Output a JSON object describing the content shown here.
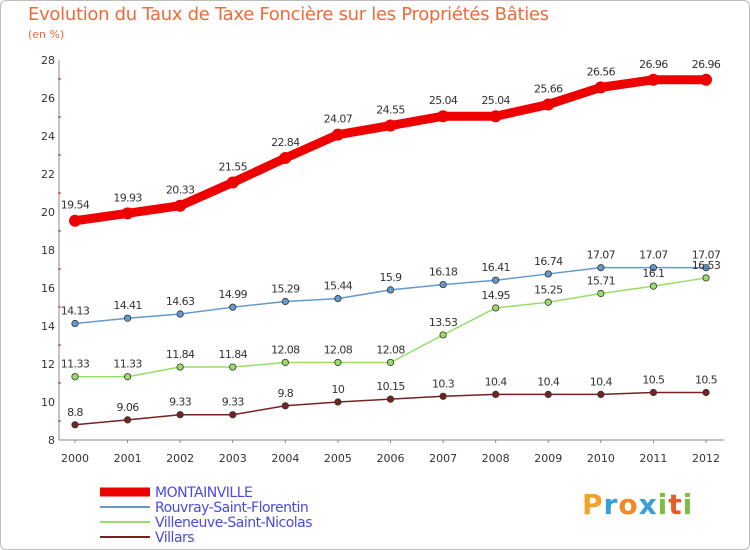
{
  "title": "Evolution du Taux de Taxe Foncière sur les Propriétés Bâties",
  "subtitle": "(en %)",
  "logo": "Proxiti",
  "chart_data": {
    "type": "line",
    "title": "Evolution du Taux de Taxe Foncière sur les Propriétés Bâties",
    "ylabel": "(en %)",
    "xlabel": "",
    "x": [
      "2000",
      "2001",
      "2002",
      "2003",
      "2004",
      "2005",
      "2006",
      "2007",
      "2008",
      "2009",
      "2010",
      "2011",
      "2012"
    ],
    "ylim": [
      8,
      28
    ],
    "yticks": [
      8,
      10,
      12,
      14,
      16,
      18,
      20,
      22,
      24,
      26,
      28
    ],
    "grid": false,
    "legend_position": "bottom-left",
    "series": [
      {
        "name": "MONTAINVILLE",
        "color": "#ee0000",
        "values": [
          19.54,
          19.93,
          20.33,
          21.55,
          22.84,
          24.07,
          24.55,
          25.04,
          25.04,
          25.66,
          26.56,
          26.96,
          26.96
        ],
        "labels": [
          "19.54",
          "19.93",
          "20.33",
          "21.55",
          "22.84",
          "24.07",
          "24.55",
          "25.04",
          "25.04",
          "25.66",
          "26.56",
          "26.96",
          "26.96"
        ]
      },
      {
        "name": "Rouvray-Saint-Florentin",
        "color": "#6699cc",
        "values": [
          14.13,
          14.41,
          14.63,
          14.99,
          15.29,
          15.44,
          15.9,
          16.18,
          16.41,
          16.74,
          17.07,
          17.07,
          17.07
        ],
        "labels": [
          "14.13",
          "14.41",
          "14.63",
          "14.99",
          "15.29",
          "15.44",
          "15.9",
          "16.18",
          "16.41",
          "16.74",
          "17.07",
          "17.07",
          "17.07"
        ]
      },
      {
        "name": "Villeneuve-Saint-Nicolas",
        "color": "#99dd66",
        "values": [
          11.33,
          11.33,
          11.84,
          11.84,
          12.08,
          12.08,
          12.08,
          13.53,
          14.95,
          15.25,
          15.71,
          16.1,
          16.53
        ],
        "labels": [
          "11.33",
          "11.33",
          "11.84",
          "11.84",
          "12.08",
          "12.08",
          "12.08",
          "13.53",
          "14.95",
          "15.25",
          "15.71",
          "16.1",
          "16.53"
        ]
      },
      {
        "name": "Villars",
        "color": "#772222",
        "values": [
          8.8,
          9.06,
          9.33,
          9.33,
          9.8,
          10,
          10.15,
          10.3,
          10.4,
          10.4,
          10.4,
          10.5,
          10.5
        ],
        "labels": [
          "8.8",
          "9.06",
          "9.33",
          "9.33",
          "9.8",
          "10",
          "10.15",
          "10.3",
          "10.4",
          "10.4",
          "10.4",
          "10.5",
          "10.5"
        ]
      }
    ]
  }
}
